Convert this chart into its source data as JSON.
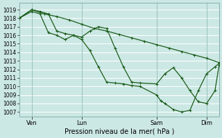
{
  "xlabel": "Pression niveau de la mer( hPa )",
  "bg_color": "#cce8e4",
  "grid_color": "#b0d4d0",
  "white_grid": "#ffffff",
  "line_color": "#1a5c1a",
  "ylim": [
    1006.5,
    1019.8
  ],
  "yticks": [
    1007,
    1008,
    1009,
    1010,
    1011,
    1012,
    1013,
    1014,
    1015,
    1016,
    1017,
    1018,
    1019
  ],
  "xlim": [
    0,
    96
  ],
  "xtick_positions": [
    6,
    30,
    66,
    90
  ],
  "xtick_labels": [
    "Ven",
    "Lun",
    "Sam",
    "Dim"
  ],
  "s1_x": [
    0,
    6,
    12,
    18,
    24,
    30,
    36,
    42,
    48,
    54,
    60,
    66,
    72,
    78,
    84,
    90,
    96
  ],
  "s1_y": [
    1018.0,
    1019.0,
    1018.5,
    1018.2,
    1017.8,
    1017.3,
    1016.8,
    1016.5,
    1016.1,
    1015.7,
    1015.3,
    1014.9,
    1014.5,
    1014.1,
    1013.7,
    1013.3,
    1012.8
  ],
  "s2_x": [
    0,
    6,
    10,
    14,
    18,
    22,
    26,
    30,
    34,
    38,
    42,
    46,
    50,
    54,
    58,
    66,
    70,
    74,
    78,
    82,
    86,
    90,
    94,
    96
  ],
  "s2_y": [
    1018.0,
    1019.0,
    1018.8,
    1018.5,
    1016.5,
    1016.2,
    1016.0,
    1015.8,
    1016.5,
    1017.0,
    1016.8,
    1014.5,
    1012.3,
    1010.5,
    1010.4,
    1010.3,
    1011.5,
    1012.2,
    1011.0,
    1009.5,
    1008.2,
    1008.0,
    1009.5,
    1012.5
  ],
  "s3_x": [
    0,
    6,
    10,
    14,
    18,
    22,
    26,
    30,
    34,
    38,
    42,
    46,
    50,
    54,
    58,
    66,
    68,
    70,
    74,
    78,
    82,
    86,
    90,
    94,
    96
  ],
  "s3_y": [
    1018.0,
    1018.8,
    1018.5,
    1016.3,
    1016.0,
    1015.5,
    1016.0,
    1015.5,
    1014.2,
    1012.3,
    1010.5,
    1010.4,
    1010.3,
    1010.1,
    1010.0,
    1009.0,
    1008.3,
    1008.0,
    1007.3,
    1007.0,
    1007.2,
    1009.5,
    1011.5,
    1012.3,
    1012.7
  ]
}
